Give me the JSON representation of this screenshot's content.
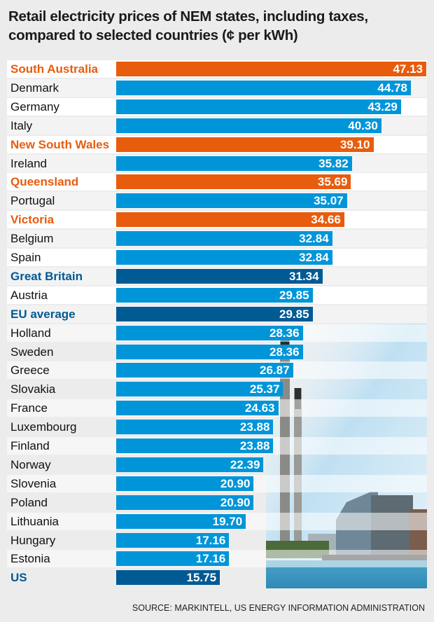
{
  "title": "Retail electricity prices of NEM states, including taxes, compared to selected countries (¢ per kWh)",
  "source": "SOURCE: MARKINTELL, US ENERGY INFORMATION ADMINISTRATION",
  "colors": {
    "nem_state": "#e85c0d",
    "country": "#0095d9",
    "benchmark": "#005a94"
  },
  "chart_data": {
    "type": "bar",
    "orientation": "horizontal",
    "title": "Retail electricity prices of NEM states, including taxes, compared to selected countries (¢ per kWh)",
    "unit": "¢ per kWh",
    "grid": false,
    "categories": [
      "South Australia",
      "Denmark",
      "Germany",
      "Italy",
      "New South Wales",
      "Ireland",
      "Queensland",
      "Portugal",
      "Victoria",
      "Belgium",
      "Spain",
      "Great Britain",
      "Austria",
      "EU average",
      "Holland",
      "Sweden",
      "Greece",
      "Slovakia",
      "France",
      "Luxembourg",
      "Finland",
      "Norway",
      "Slovenia",
      "Poland",
      "Lithuania",
      "Hungary",
      "Estonia",
      "US"
    ],
    "values": [
      47.13,
      44.78,
      43.29,
      40.3,
      39.1,
      35.82,
      35.69,
      35.07,
      34.66,
      32.84,
      32.84,
      31.34,
      29.85,
      29.85,
      28.36,
      28.36,
      26.87,
      25.37,
      24.63,
      23.88,
      23.88,
      22.39,
      20.9,
      20.9,
      19.7,
      17.16,
      17.16,
      15.75
    ],
    "value_labels": [
      "47.13",
      "44.78",
      "43.29",
      "40.30",
      "39.10",
      "35.82",
      "35.69",
      "35.07",
      "34.66",
      "32.84",
      "32.84",
      "31.34",
      "29.85",
      "29.85",
      "28.36",
      "28.36",
      "26.87",
      "25.37",
      "24.63",
      "23.88",
      "23.88",
      "22.39",
      "20.90",
      "20.90",
      "19.70",
      "17.16",
      "17.16",
      "15.75"
    ],
    "groups": [
      "nem_state",
      "country",
      "country",
      "country",
      "nem_state",
      "country",
      "nem_state",
      "country",
      "nem_state",
      "country",
      "country",
      "benchmark",
      "country",
      "benchmark",
      "country",
      "country",
      "country",
      "country",
      "country",
      "country",
      "country",
      "country",
      "country",
      "country",
      "country",
      "country",
      "country",
      "benchmark"
    ]
  },
  "background_image": "power-station-photo"
}
